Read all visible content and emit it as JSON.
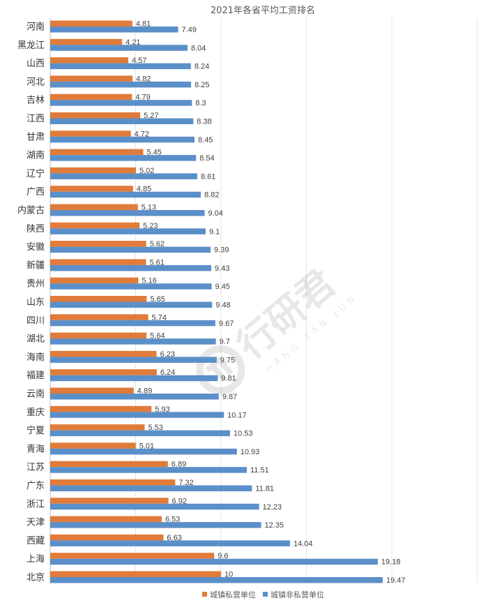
{
  "chart_data": {
    "type": "bar",
    "orientation": "horizontal",
    "title": "2021年各省平均工资排名",
    "categories": [
      "河南",
      "黑龙江",
      "山西",
      "河北",
      "吉林",
      "江西",
      "甘肃",
      "湖南",
      "辽宁",
      "广西",
      "内蒙古",
      "陕西",
      "安徽",
      "新疆",
      "贵州",
      "山东",
      "四川",
      "湖北",
      "海南",
      "福建",
      "云南",
      "重庆",
      "宁夏",
      "青海",
      "江苏",
      "广东",
      "浙江",
      "天津",
      "西藏",
      "上海",
      "北京"
    ],
    "series": [
      {
        "name": "城镇私营单位",
        "color": "#E07B39",
        "values": [
          4.81,
          4.21,
          4.57,
          4.82,
          4.79,
          5.27,
          4.72,
          5.45,
          5.02,
          4.85,
          5.13,
          5.23,
          5.62,
          5.61,
          5.16,
          5.65,
          5.74,
          5.64,
          6.23,
          6.24,
          4.89,
          5.93,
          5.53,
          5.01,
          6.89,
          7.32,
          6.92,
          6.53,
          6.63,
          9.6,
          10
        ]
      },
      {
        "name": "城镇非私营单位",
        "color": "#5B8FC9",
        "values": [
          7.49,
          8.04,
          8.24,
          8.25,
          8.3,
          8.38,
          8.45,
          8.54,
          8.61,
          8.82,
          9.04,
          9.1,
          9.39,
          9.43,
          9.45,
          9.48,
          9.67,
          9.7,
          9.75,
          9.81,
          9.87,
          10.17,
          10.53,
          10.93,
          11.51,
          11.81,
          12.23,
          12.35,
          14.04,
          19.18,
          19.47
        ]
      }
    ],
    "xlim": [
      0,
      25
    ],
    "grid": true,
    "legend": "bottom"
  },
  "watermark": {
    "icon": "yanjunjie-logo-icon",
    "text": "行研君",
    "subtext": "HANG YAN JUN"
  }
}
